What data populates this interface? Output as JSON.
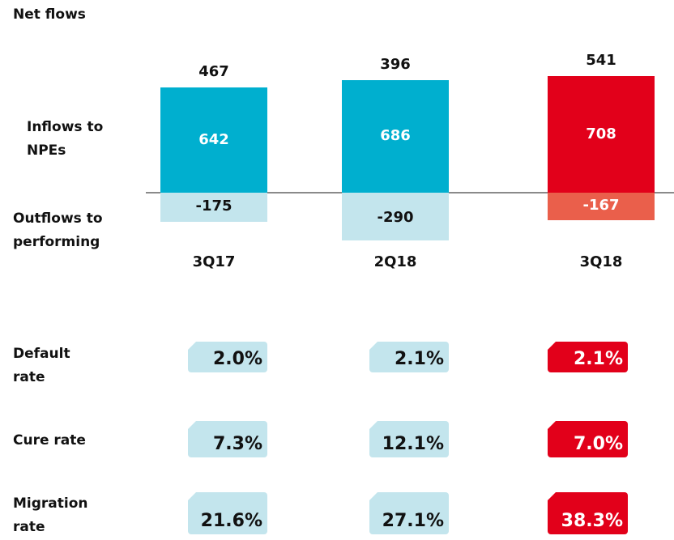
{
  "chart_data": {
    "type": "bar",
    "categories": [
      "3Q17",
      "2Q18",
      "3Q18"
    ],
    "net_label": "Net flows",
    "net_values": [
      467,
      396,
      541
    ],
    "series": [
      {
        "name": "Inflows to NPEs",
        "colors": [
          "#00afcf",
          "#00afcf",
          "#e2001a"
        ],
        "values": [
          642,
          686,
          708
        ]
      },
      {
        "name": "Outflows to performing",
        "colors": [
          "#c3e5ed",
          "#c3e5ed",
          "#ea5f4b"
        ],
        "values": [
          -175,
          -290,
          -167
        ]
      }
    ]
  },
  "rates": [
    {
      "name": "Default rate",
      "values": [
        2.0,
        2.1,
        2.1
      ],
      "value_labels": [
        "2.0%",
        "2.1%",
        "2.1%"
      ]
    },
    {
      "name": "Cure rate",
      "values": [
        7.3,
        12.1,
        7.0
      ],
      "value_labels": [
        "7.3%",
        "12.1%",
        "7.0%"
      ]
    },
    {
      "name": "Migration rate",
      "values": [
        21.6,
        27.1,
        38.3
      ],
      "value_labels": [
        "21.6%",
        "27.1%",
        "38.3%"
      ]
    }
  ],
  "rate_colors": [
    "#c3e5ed",
    "#c3e5ed",
    "#e2001a"
  ]
}
